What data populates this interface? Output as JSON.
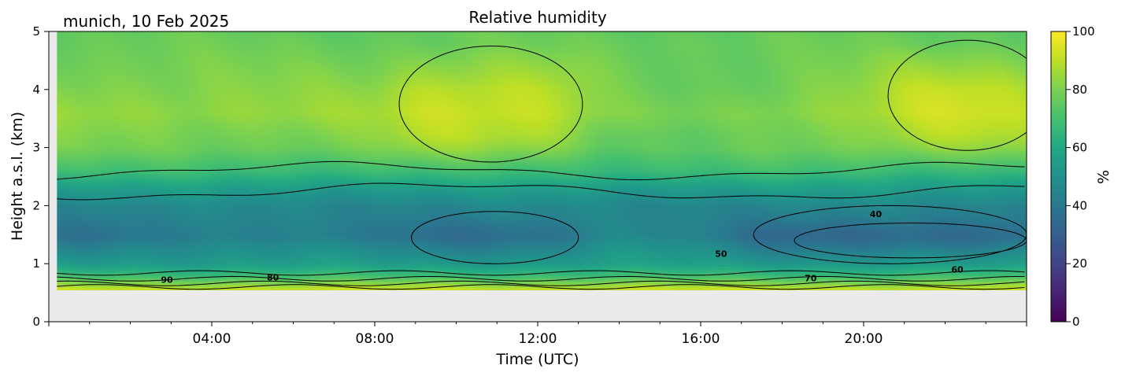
{
  "location_date": "munich, 10 Feb 2025",
  "chart_data": {
    "type": "heatmap",
    "title": "Relative humidity",
    "xlabel": "Time (UTC)",
    "ylabel": "Height a.s.l. (km)",
    "xlim_hours": [
      0,
      24
    ],
    "ylim_km": [
      0,
      5
    ],
    "x_ticks": [
      "04:00",
      "08:00",
      "12:00",
      "16:00",
      "20:00"
    ],
    "x_tick_hours": [
      4,
      8,
      12,
      16,
      20
    ],
    "y_ticks": [
      0,
      1,
      2,
      3,
      4,
      5
    ],
    "data_bottom_km": 0.55,
    "colormap": "viridis",
    "colorbar": {
      "label": "%",
      "range": [
        0,
        100
      ],
      "ticks": [
        0,
        20,
        40,
        60,
        80,
        100
      ]
    },
    "contour_levels": [
      40,
      50,
      60,
      70,
      80,
      90
    ],
    "contour_labels": [
      {
        "text": "90",
        "hour": 2.9,
        "km": 0.67
      },
      {
        "text": "80",
        "hour": 5.5,
        "km": 0.71
      },
      {
        "text": "50",
        "hour": 16.5,
        "km": 1.12
      },
      {
        "text": "70",
        "hour": 18.7,
        "km": 0.7
      },
      {
        "text": "40",
        "hour": 20.3,
        "km": 1.8
      },
      {
        "text": "60",
        "hour": 22.3,
        "km": 0.85
      }
    ],
    "profile_layers": [
      {
        "km": 0.55,
        "rh": 92
      },
      {
        "km": 0.6,
        "rh": 88
      },
      {
        "km": 0.7,
        "rh": 78
      },
      {
        "km": 0.8,
        "rh": 68
      },
      {
        "km": 1.0,
        "rh": 55
      },
      {
        "km": 1.5,
        "rh": 42
      },
      {
        "km": 2.0,
        "rh": 46
      },
      {
        "km": 2.3,
        "rh": 55
      },
      {
        "km": 2.6,
        "rh": 68
      },
      {
        "km": 3.0,
        "rh": 78
      },
      {
        "km": 3.6,
        "rh": 84
      },
      {
        "km": 4.3,
        "rh": 80
      },
      {
        "km": 5.0,
        "rh": 76
      }
    ],
    "moist_mid_column_hours": [
      8.5,
      13,
      20.5,
      24
    ],
    "dry_core_hours": [
      8.5,
      13,
      17,
      24
    ]
  }
}
